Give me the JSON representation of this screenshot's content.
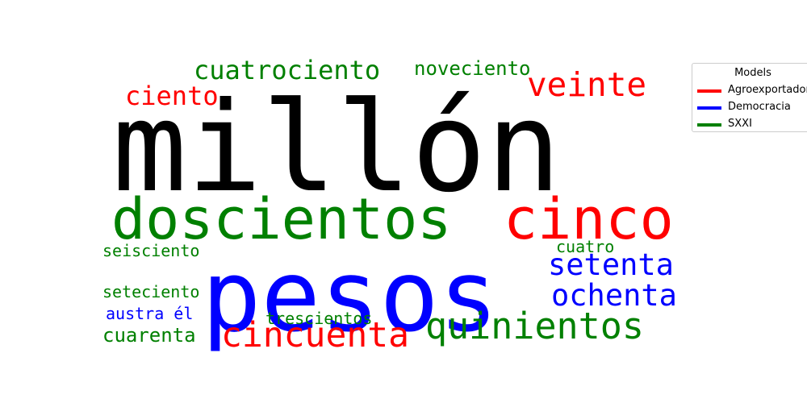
{
  "chart_data": {
    "type": "wordcloud",
    "words": [
      {
        "text": "millón",
        "series": "black"
      },
      {
        "text": "pesos",
        "series": "Democracia"
      },
      {
        "text": "doscientos",
        "series": "SXXI"
      },
      {
        "text": "cinco",
        "series": "Agroexportador"
      },
      {
        "text": "cuatrociento",
        "series": "SXXI"
      },
      {
        "text": "noveciento",
        "series": "SXXI"
      },
      {
        "text": "veinte",
        "series": "Agroexportador"
      },
      {
        "text": "ciento",
        "series": "Agroexportador"
      },
      {
        "text": "setenta",
        "series": "Democracia"
      },
      {
        "text": "ochenta",
        "series": "Democracia"
      },
      {
        "text": "cuatro",
        "series": "SXXI"
      },
      {
        "text": "seisciento",
        "series": "SXXI"
      },
      {
        "text": "seteciento",
        "series": "SXXI"
      },
      {
        "text": "austra él",
        "series": "Democracia"
      },
      {
        "text": "cuarenta",
        "series": "SXXI"
      },
      {
        "text": "trescientos",
        "series": "SXXI"
      },
      {
        "text": "cincuenta",
        "series": "Agroexportador"
      },
      {
        "text": "quinientos",
        "series": "SXXI"
      }
    ],
    "legend": {
      "title": "Models",
      "placement": "top-right",
      "entries": [
        {
          "name": "Agroexportador",
          "color": "#ff0000"
        },
        {
          "name": "Democracia",
          "color": "#0000ff"
        },
        {
          "name": "SXXI",
          "color": "#008000"
        }
      ]
    },
    "colors": {
      "Agroexportador": "#ff0000",
      "Democracia": "#0000ff",
      "SXXI": "#008000",
      "black": "#000000"
    }
  }
}
